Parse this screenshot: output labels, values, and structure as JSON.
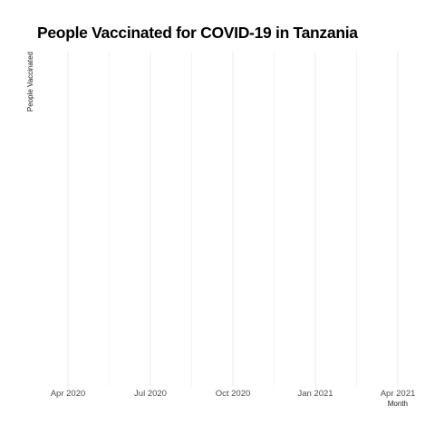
{
  "chart_data": {
    "type": "line",
    "title": "People Vaccinated for COVID-19 in Tanzania",
    "xlabel": "Month",
    "ylabel": "People Vaccinated",
    "x_tick_labels": [
      "Apr 2020",
      "Jul 2020",
      "Oct 2020",
      "Jan 2021",
      "Apr 2021"
    ],
    "series": [],
    "grid": true,
    "grid_color": "#ebebeb",
    "background": "#ffffff"
  }
}
